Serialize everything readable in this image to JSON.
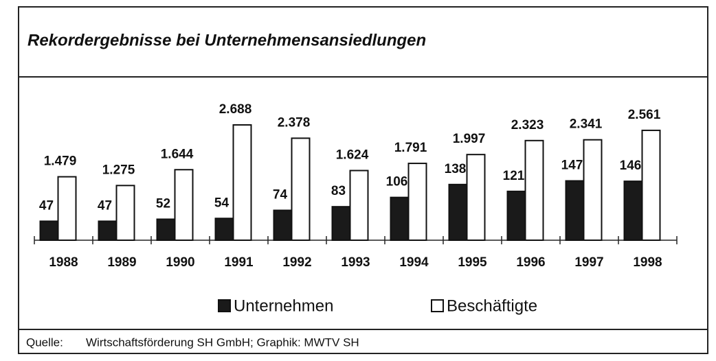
{
  "chart_data": {
    "type": "bar",
    "title": "Rekordergebnisse bei Unternehmensansiedlungen",
    "categories": [
      "1988",
      "1989",
      "1990",
      "1991",
      "1992",
      "1993",
      "1994",
      "1995",
      "1996",
      "1997",
      "1998"
    ],
    "series": [
      {
        "name": "Unternehmen",
        "color": "#1a1a1a",
        "values": [
          47,
          47,
          52,
          54,
          74,
          83,
          106,
          138,
          121,
          147,
          146
        ]
      },
      {
        "name": "Beschäftigte",
        "color": "#ffffff",
        "axis": "y2",
        "values": [
          1479,
          1275,
          1644,
          2688,
          2378,
          1624,
          1791,
          1997,
          2323,
          2341,
          2561
        ],
        "value_labels": [
          "1.479",
          "1.275",
          "1.644",
          "2.688",
          "2.378",
          "1.624",
          "1.791",
          "1.997",
          "2.323",
          "2.341",
          "2.561"
        ]
      }
    ],
    "ylim": [
      0,
      340
    ],
    "y2lim": [
      0,
      3200
    ],
    "source_label": "Quelle:",
    "source": "Wirtschaftsförderung SH GmbH; Graphik: MWTV SH"
  }
}
